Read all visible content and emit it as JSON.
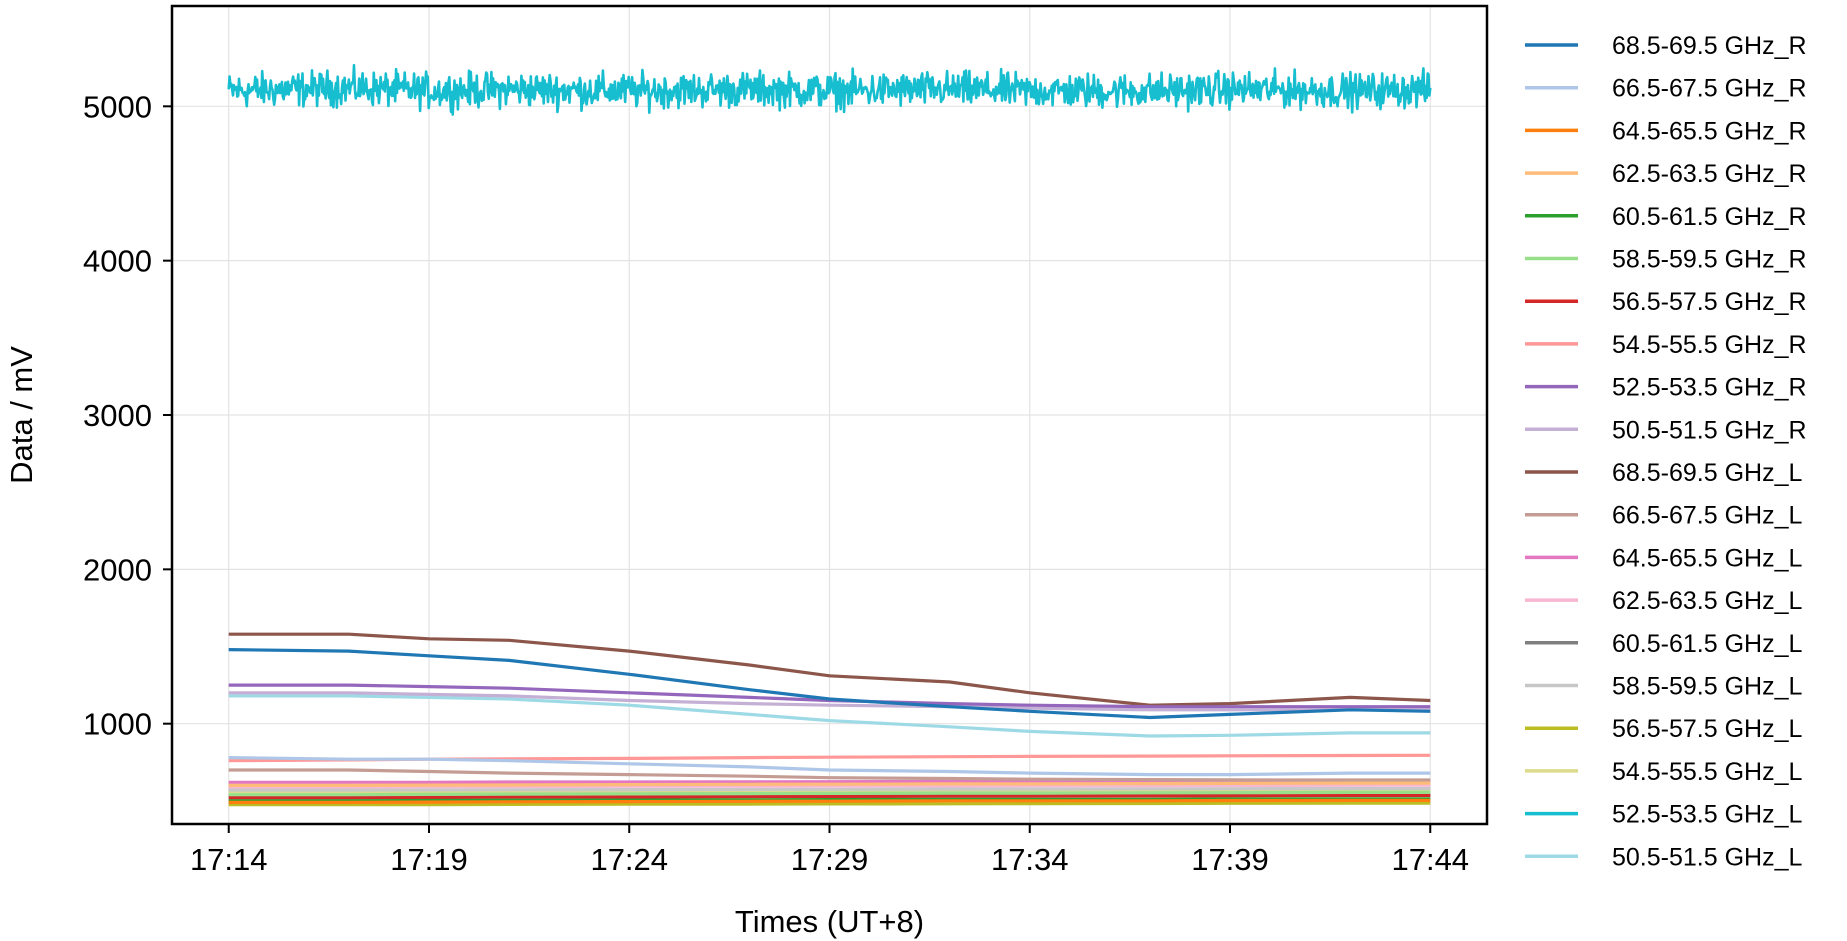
{
  "chart_data": {
    "type": "line",
    "title": "",
    "xlabel": "Times (UT+8)",
    "ylabel": "Data / mV",
    "xlim": [
      "17:12:35",
      "17:45:25"
    ],
    "ylim": [
      350,
      5650
    ],
    "x_ticks": [
      "17:14",
      "17:19",
      "17:24",
      "17:29",
      "17:34",
      "17:39",
      "17:44"
    ],
    "y_ticks": [
      1000,
      2000,
      3000,
      4000,
      5000
    ],
    "grid": true,
    "legend_position": "outside-right",
    "x": [
      "17:14",
      "17:17",
      "17:19",
      "17:21",
      "17:24",
      "17:27",
      "17:29",
      "17:32",
      "17:34",
      "17:37",
      "17:39",
      "17:42",
      "17:44"
    ],
    "series": [
      {
        "name": "68.5-69.5 GHz_R",
        "color": "#1f77b4",
        "values": [
          1480,
          1470,
          1440,
          1410,
          1320,
          1220,
          1160,
          1110,
          1080,
          1040,
          1060,
          1090,
          1080
        ]
      },
      {
        "name": "66.5-67.5 GHz_R",
        "color": "#aec7e8",
        "values": [
          780,
          770,
          770,
          760,
          740,
          720,
          700,
          690,
          680,
          670,
          670,
          680,
          680
        ]
      },
      {
        "name": "64.5-65.5 GHz_R",
        "color": "#ff7f0e",
        "values": [
          490,
          490,
          492,
          494,
          495,
          497,
          498,
          500,
          500,
          500,
          502,
          503,
          503
        ]
      },
      {
        "name": "62.5-63.5 GHz_R",
        "color": "#ffbb78",
        "values": [
          600,
          600,
          602,
          603,
          605,
          607,
          608,
          610,
          610,
          612,
          613,
          615,
          615
        ]
      },
      {
        "name": "60.5-61.5 GHz_R",
        "color": "#2ca02c",
        "values": [
          500,
          500,
          502,
          504,
          505,
          506,
          508,
          510,
          510,
          510,
          512,
          513,
          513
        ]
      },
      {
        "name": "58.5-59.5 GHz_R",
        "color": "#98df8a",
        "values": [
          540,
          540,
          542,
          544,
          545,
          547,
          548,
          550,
          550,
          552,
          553,
          555,
          555
        ]
      },
      {
        "name": "56.5-57.5 GHz_R",
        "color": "#d62728",
        "values": [
          520,
          520,
          522,
          524,
          525,
          527,
          528,
          530,
          530,
          532,
          533,
          535,
          535
        ]
      },
      {
        "name": "54.5-55.5 GHz_R",
        "color": "#ff9896",
        "values": [
          760,
          765,
          770,
          772,
          775,
          780,
          783,
          786,
          788,
          790,
          792,
          794,
          795
        ]
      },
      {
        "name": "52.5-53.5 GHz_R",
        "color": "#9467bd",
        "values": [
          1250,
          1250,
          1240,
          1230,
          1200,
          1170,
          1150,
          1130,
          1120,
          1110,
          1110,
          1110,
          1110
        ]
      },
      {
        "name": "50.5-51.5 GHz_R",
        "color": "#c5b0d5",
        "values": [
          1200,
          1200,
          1190,
          1180,
          1150,
          1130,
          1120,
          1110,
          1100,
          1090,
          1090,
          1090,
          1090
        ]
      },
      {
        "name": "68.5-69.5 GHz_L",
        "color": "#8c564b",
        "values": [
          1580,
          1580,
          1550,
          1540,
          1470,
          1380,
          1310,
          1270,
          1200,
          1120,
          1130,
          1170,
          1150
        ]
      },
      {
        "name": "66.5-67.5 GHz_L",
        "color": "#c49c94",
        "values": [
          700,
          700,
          690,
          680,
          670,
          660,
          650,
          645,
          640,
          638,
          636,
          635,
          635
        ]
      },
      {
        "name": "64.5-65.5 GHz_L",
        "color": "#e377c2",
        "values": [
          620,
          620,
          620,
          622,
          622,
          623,
          624,
          625,
          626,
          627,
          628,
          629,
          630
        ]
      },
      {
        "name": "62.5-63.5 GHz_L",
        "color": "#f7b6d2",
        "values": [
          590,
          590,
          592,
          593,
          594,
          595,
          596,
          597,
          598,
          599,
          600,
          601,
          602
        ]
      },
      {
        "name": "60.5-61.5 GHz_L",
        "color": "#7f7f7f",
        "values": [
          530,
          530,
          531,
          532,
          533,
          534,
          535,
          536,
          537,
          538,
          539,
          540,
          540
        ]
      },
      {
        "name": "58.5-59.5 GHz_L",
        "color": "#c7c7c7",
        "values": [
          570,
          570,
          571,
          572,
          573,
          574,
          575,
          576,
          577,
          578,
          579,
          580,
          580
        ]
      },
      {
        "name": "56.5-57.5 GHz_L",
        "color": "#bcbd22",
        "values": [
          475,
          475,
          476,
          477,
          478,
          479,
          480,
          481,
          482,
          483,
          484,
          485,
          485
        ]
      },
      {
        "name": "54.5-55.5 GHz_L",
        "color": "#dbdb8d",
        "values": [
          560,
          560,
          561,
          562,
          563,
          564,
          565,
          566,
          567,
          568,
          569,
          570,
          570
        ]
      },
      {
        "name": "52.5-53.5 GHz_L",
        "color": "#17becf",
        "noisy": true,
        "values": [
          5100,
          5120,
          5100,
          5110,
          5100,
          5110,
          5100,
          5110,
          5100,
          5100,
          5110,
          5100,
          5110
        ],
        "noise_amplitude": 110
      },
      {
        "name": "50.5-51.5 GHz_L",
        "color": "#9edae5",
        "values": [
          1180,
          1180,
          1170,
          1160,
          1120,
          1060,
          1020,
          980,
          950,
          920,
          925,
          940,
          940
        ]
      }
    ]
  }
}
